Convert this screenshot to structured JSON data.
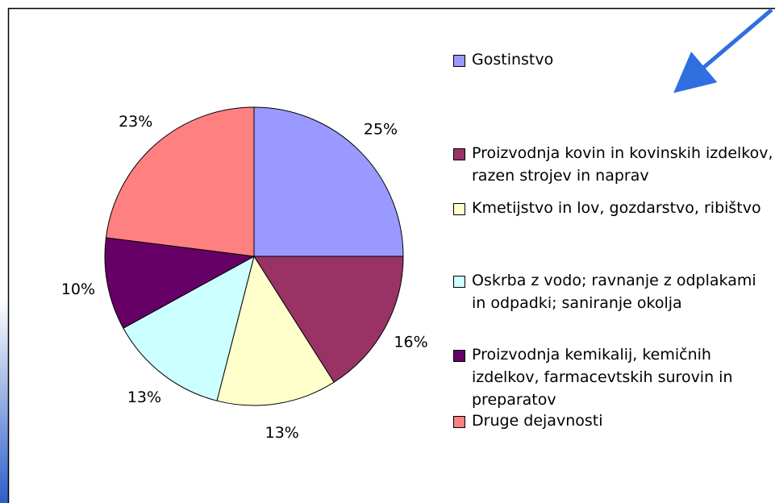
{
  "chart_data": {
    "type": "pie",
    "categories": [
      "Gostinstvo",
      "Proizvodnja kovin in kovinskih izdelkov, razen strojev in naprav",
      "Kmetijstvo in lov, gozdarstvo, ribištvo",
      "Oskrba z vodo; ravnanje z odplakami in odpadki; saniranje okolja",
      "Proizvodnja kemikalij, kemičnih izdelkov, farmacevtskih surovin in preparatov",
      "Druge dejavnosti"
    ],
    "values": [
      25,
      16,
      13,
      13,
      10,
      23
    ],
    "value_labels": [
      "25%",
      "16%",
      "13%",
      "13%",
      "10%",
      "23%"
    ],
    "colors": [
      "#9999ff",
      "#993366",
      "#ffffcc",
      "#ccffff",
      "#660066",
      "#ff8080"
    ],
    "legend": "right"
  }
}
